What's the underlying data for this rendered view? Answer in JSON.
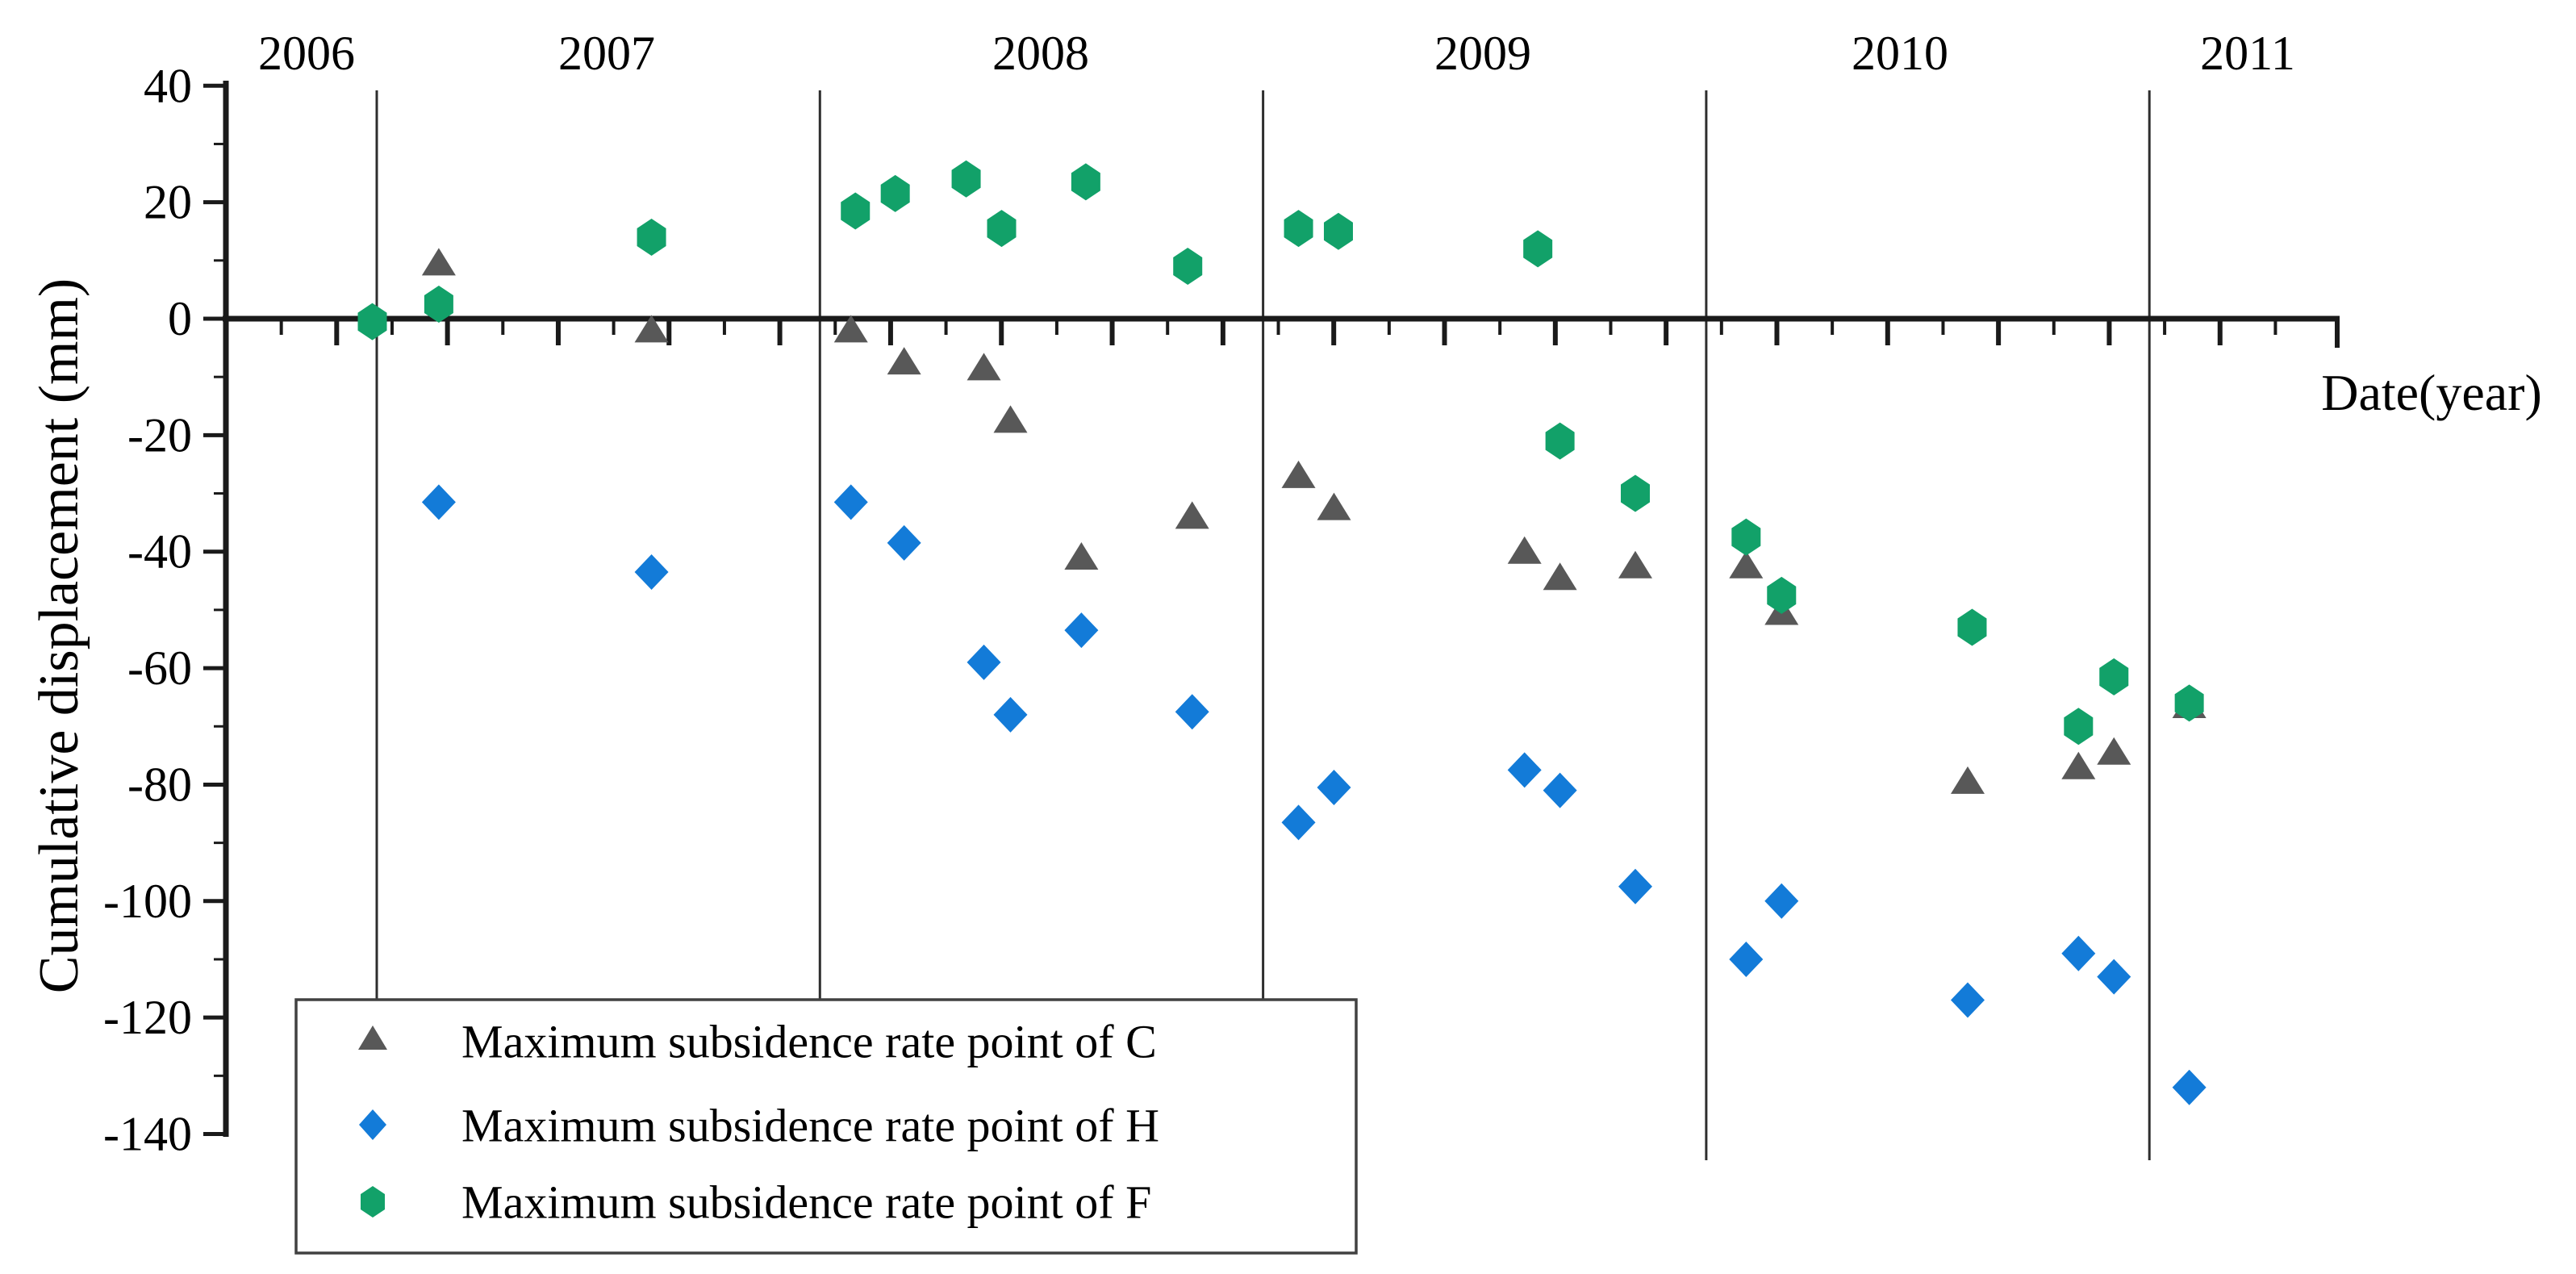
{
  "chart_data": {
    "type": "scatter",
    "title": "",
    "xlabel": "Date(year)",
    "ylabel": "Cumulative displacement (mm)",
    "x_year_labels": [
      "2006",
      "2007",
      "2008",
      "2009",
      "2010",
      "2011"
    ],
    "year_boundaries": [
      2007,
      2008,
      2009,
      2010,
      2011
    ],
    "xlim_years": [
      2006.66,
      2011.43
    ],
    "ylim": [
      -140,
      40
    ],
    "y_tick_step": 20,
    "y_minor_step": 10,
    "grid": "vertical-year-lines",
    "legend_position": "bottom-left",
    "series": [
      {
        "name": "Maximum subsidence rate point of C",
        "marker": "triangle",
        "color": "#585858",
        "points": [
          [
            2007.14,
            9.5
          ],
          [
            2007.62,
            -2
          ],
          [
            2008.07,
            -2
          ],
          [
            2008.19,
            -7.5
          ],
          [
            2008.37,
            -8.5
          ],
          [
            2008.43,
            -17.5
          ],
          [
            2008.59,
            -41
          ],
          [
            2008.84,
            -34
          ],
          [
            2009.08,
            -27
          ],
          [
            2009.16,
            -32.5
          ],
          [
            2009.59,
            -40
          ],
          [
            2009.67,
            -44.5
          ],
          [
            2009.84,
            -42.5
          ],
          [
            2010.09,
            -42.5
          ],
          [
            2010.17,
            -50.5
          ],
          [
            2010.59,
            -79.5
          ],
          [
            2010.84,
            -77
          ],
          [
            2010.92,
            -74.5
          ],
          [
            2011.09,
            -66.5
          ]
        ]
      },
      {
        "name": "Maximum subsidence rate point of H",
        "marker": "diamond",
        "color": "#137bd8",
        "points": [
          [
            2007.14,
            -31.5
          ],
          [
            2007.62,
            -43.5
          ],
          [
            2008.07,
            -31.5
          ],
          [
            2008.19,
            -38.5
          ],
          [
            2008.37,
            -59
          ],
          [
            2008.43,
            -68
          ],
          [
            2008.59,
            -53.5
          ],
          [
            2008.84,
            -67.5
          ],
          [
            2009.08,
            -86.5
          ],
          [
            2009.16,
            -80.5
          ],
          [
            2009.59,
            -77.5
          ],
          [
            2009.67,
            -81
          ],
          [
            2009.84,
            -97.5
          ],
          [
            2010.09,
            -110
          ],
          [
            2010.17,
            -100
          ],
          [
            2010.59,
            -117
          ],
          [
            2010.84,
            -109
          ],
          [
            2010.92,
            -113
          ],
          [
            2011.09,
            -132
          ]
        ]
      },
      {
        "name": "Maximum subsidence rate point of F",
        "marker": "hexagon",
        "color": "#12a169",
        "points": [
          [
            2006.99,
            -0.5
          ],
          [
            2007.14,
            2.5
          ],
          [
            2007.62,
            14
          ],
          [
            2008.08,
            18.5
          ],
          [
            2008.17,
            21.5
          ],
          [
            2008.33,
            24
          ],
          [
            2008.41,
            15.5
          ],
          [
            2008.6,
            23.5
          ],
          [
            2008.83,
            9
          ],
          [
            2009.08,
            15.5
          ],
          [
            2009.17,
            15
          ],
          [
            2009.62,
            12
          ],
          [
            2009.67,
            -21
          ],
          [
            2009.84,
            -30
          ],
          [
            2010.09,
            -37.5
          ],
          [
            2010.17,
            -47.5
          ],
          [
            2010.6,
            -53
          ],
          [
            2010.84,
            -70
          ],
          [
            2010.92,
            -61.5
          ],
          [
            2011.09,
            -66
          ]
        ]
      }
    ]
  },
  "colors": {
    "axis": "#1a1a1a",
    "year_line": "#2e2e2e",
    "tick": "#1a1a1a",
    "legend_border": "#414141",
    "legend_background": "#ffffff",
    "background": "#ffffff"
  }
}
